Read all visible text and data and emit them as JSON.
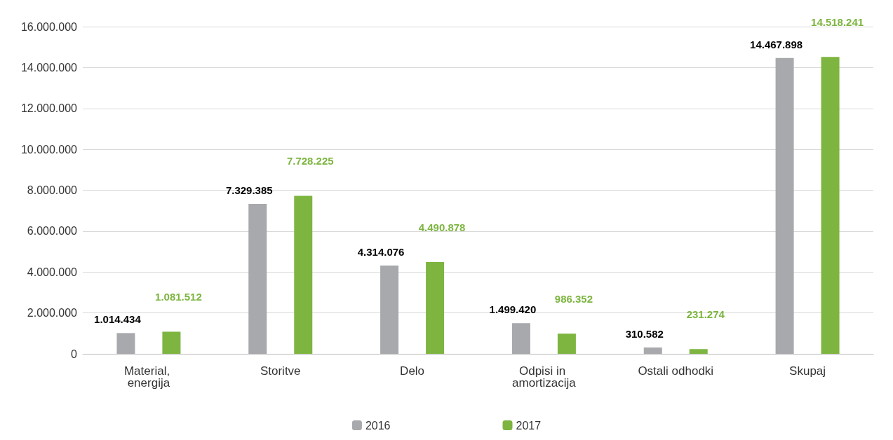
{
  "chart_data": {
    "type": "bar",
    "categories": [
      "Material, energija",
      "Storitve",
      "Delo",
      "Odpisi in amortizacija",
      "Ostali odhodki",
      "Skupaj"
    ],
    "series": [
      {
        "name": "2016",
        "color": "#a7a9ac",
        "values": [
          1014434,
          7329385,
          4314076,
          1499420,
          310582,
          14467898
        ],
        "value_labels": [
          "1.014.434",
          "7.329.385",
          "4.314.076",
          "1.499.420",
          "310.582",
          "14.467.898"
        ]
      },
      {
        "name": "2017",
        "color": "#7db540",
        "values": [
          1081512,
          7728225,
          4490878,
          986352,
          231274,
          14518241
        ],
        "value_labels": [
          "1.081.512",
          "7.728.225",
          "4.490.878",
          "986.352",
          "231.274",
          "14.518.241"
        ]
      }
    ],
    "ylim": [
      0,
      16000000
    ],
    "yticks": [
      {
        "value": 0,
        "label": "0"
      },
      {
        "value": 2000000,
        "label": "2.000.000"
      },
      {
        "value": 4000000,
        "label": "4.000.000"
      },
      {
        "value": 6000000,
        "label": "6.000.000"
      },
      {
        "value": 8000000,
        "label": "8.000.000"
      },
      {
        "value": 10000000,
        "label": "10.000.000"
      },
      {
        "value": 12000000,
        "label": "12.000.000"
      },
      {
        "value": 14000000,
        "label": "14.000.000"
      },
      {
        "value": 16000000,
        "label": "16.000.000"
      }
    ],
    "grid": "y",
    "legend": "bottom"
  }
}
